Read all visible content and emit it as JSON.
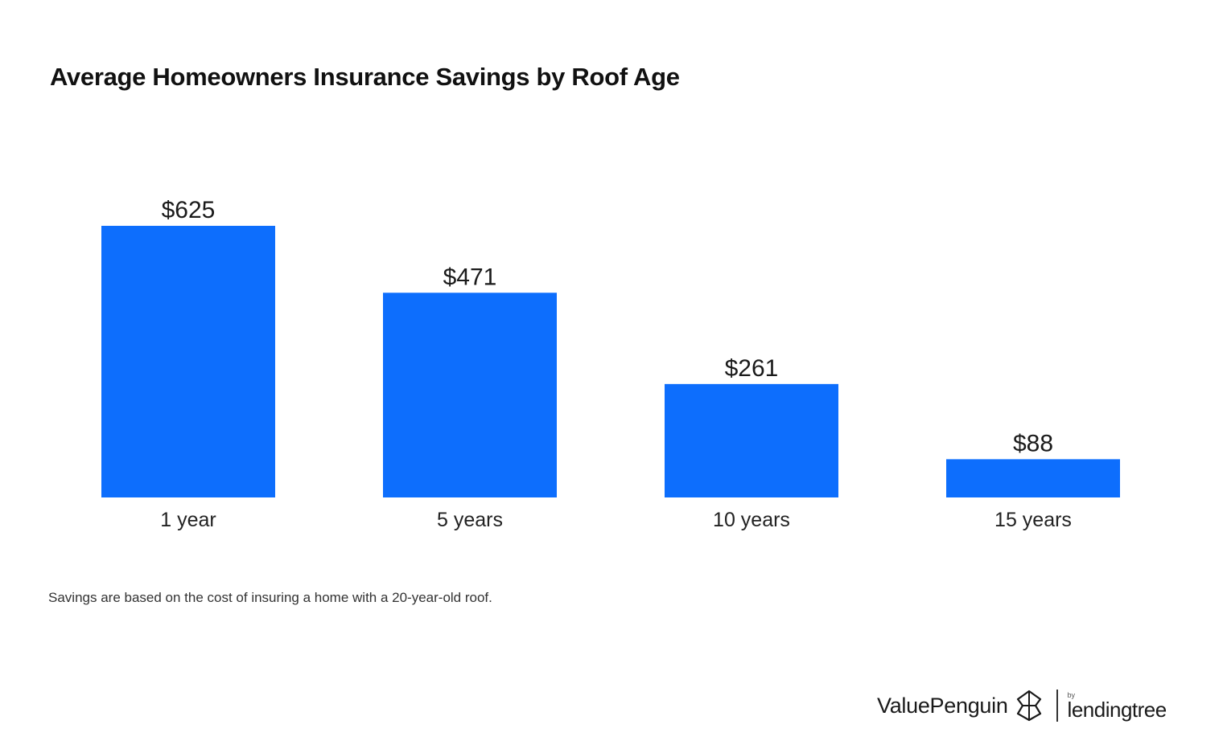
{
  "chart_data": {
    "type": "bar",
    "title": "Average Homeowners Insurance Savings by Roof Age",
    "categories": [
      "1 year",
      "5 years",
      "10 years",
      "15 years"
    ],
    "values": [
      625,
      471,
      261,
      88
    ],
    "value_labels": [
      "$625",
      "$471",
      "$261",
      "$88"
    ],
    "xlabel": "",
    "ylabel": "",
    "ylim": [
      0,
      625
    ],
    "grid": false,
    "legend": "none",
    "bar_color": "#0d6efd"
  },
  "footnote": "Savings are based on the cost of insuring a home with a 20-year-old roof.",
  "branding": {
    "valuepenguin": "ValuePenguin",
    "valuepenguin_icon": "penguin-logo-icon",
    "by": "by",
    "lendingtree": "lendingtree"
  }
}
